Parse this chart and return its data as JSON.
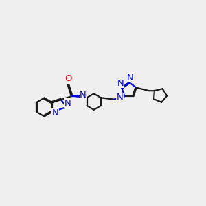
{
  "bg_color": "#efefef",
  "bond_color": "#1a1a1a",
  "N_color": "#0000ee",
  "O_color": "#ee0000",
  "lw": 1.6,
  "doff": 0.055,
  "fs": 9.5,
  "fig_w": 3.0,
  "fig_h": 3.0,
  "dpi": 100,
  "xlim": [
    0,
    10
  ],
  "ylim": [
    0,
    10
  ]
}
